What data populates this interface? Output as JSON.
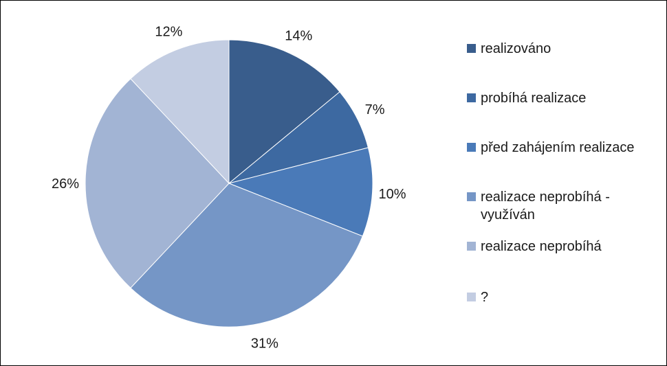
{
  "chart_data": {
    "type": "pie",
    "categories": [
      "realizováno",
      "probíhá realizace",
      "před zahájením realizace",
      "realizace neprobíhá -\nvyužíván",
      "realizace neprobíhá",
      "?"
    ],
    "values": [
      14,
      7,
      10,
      31,
      26,
      12
    ],
    "labels": [
      "14%",
      "7%",
      "10%",
      "31%",
      "26%",
      "12%"
    ],
    "colors": [
      "#395d8c",
      "#3d69a1",
      "#4a7ab8",
      "#7596c6",
      "#a2b4d4",
      "#c3cde2"
    ],
    "legend_position": "right"
  }
}
